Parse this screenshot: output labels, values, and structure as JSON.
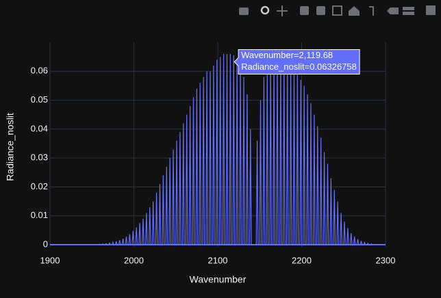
{
  "chart_data": {
    "type": "stick",
    "x_label": "Wavenumber",
    "y_label": "Radiance_noslit",
    "x": [
      1955,
      1959,
      1963,
      1967,
      1971,
      1975,
      1979,
      1983,
      1987,
      1991,
      1995,
      1999,
      2003,
      2007,
      2011,
      2015,
      2019,
      2023,
      2027,
      2031,
      2035,
      2039,
      2043,
      2047,
      2051,
      2055,
      2059,
      2063,
      2067,
      2071,
      2075,
      2079,
      2083,
      2087,
      2091,
      2095,
      2099,
      2103,
      2107,
      2111,
      2115,
      2119,
      2123,
      2127,
      2131,
      2135,
      2139,
      2147,
      2151,
      2155,
      2159,
      2163,
      2167,
      2171,
      2175,
      2179,
      2183,
      2187,
      2191,
      2195,
      2199,
      2203,
      2207,
      2211,
      2215,
      2219,
      2223,
      2227,
      2231,
      2235,
      2239,
      2243,
      2247,
      2251,
      2255,
      2259,
      2263,
      2267,
      2271,
      2275,
      2279,
      2283
    ],
    "values": [
      0.0001,
      0.0002,
      0.0003,
      0.0004,
      0.0006,
      0.0009,
      0.0012,
      0.0016,
      0.0021,
      0.0028,
      0.0037,
      0.0048,
      0.006,
      0.0075,
      0.009,
      0.011,
      0.013,
      0.015,
      0.018,
      0.021,
      0.024,
      0.027,
      0.03,
      0.033,
      0.036,
      0.039,
      0.042,
      0.045,
      0.048,
      0.051,
      0.054,
      0.056,
      0.058,
      0.06,
      0.06,
      0.062,
      0.064,
      0.065,
      0.066,
      0.066,
      0.066,
      0.0655,
      0.064,
      0.062,
      0.058,
      0.052,
      0.04,
      0.036,
      0.05,
      0.058,
      0.062,
      0.064,
      0.065,
      0.065,
      0.065,
      0.064,
      0.063,
      0.062,
      0.061,
      0.059,
      0.057,
      0.055,
      0.052,
      0.049,
      0.045,
      0.041,
      0.037,
      0.032,
      0.028,
      0.023,
      0.019,
      0.015,
      0.011,
      0.008,
      0.0058,
      0.004,
      0.0028,
      0.0019,
      0.0013,
      0.0008,
      0.0005,
      0.0003
    ],
    "color": "#636efa",
    "xlim": [
      1900,
      2300
    ],
    "xticks": [
      1900,
      2000,
      2100,
      2200,
      2300
    ],
    "ylim": [
      -0.0007,
      0.07
    ],
    "yticks": [
      0,
      0.01,
      0.02,
      0.03,
      0.04,
      0.05,
      0.06
    ],
    "grid": true,
    "hover": {
      "x": 2119.68,
      "y": 0.06326758,
      "lines": [
        "Wavenumber=2,119.68",
        "Radiance_noslit=0.06326758"
      ]
    }
  }
}
